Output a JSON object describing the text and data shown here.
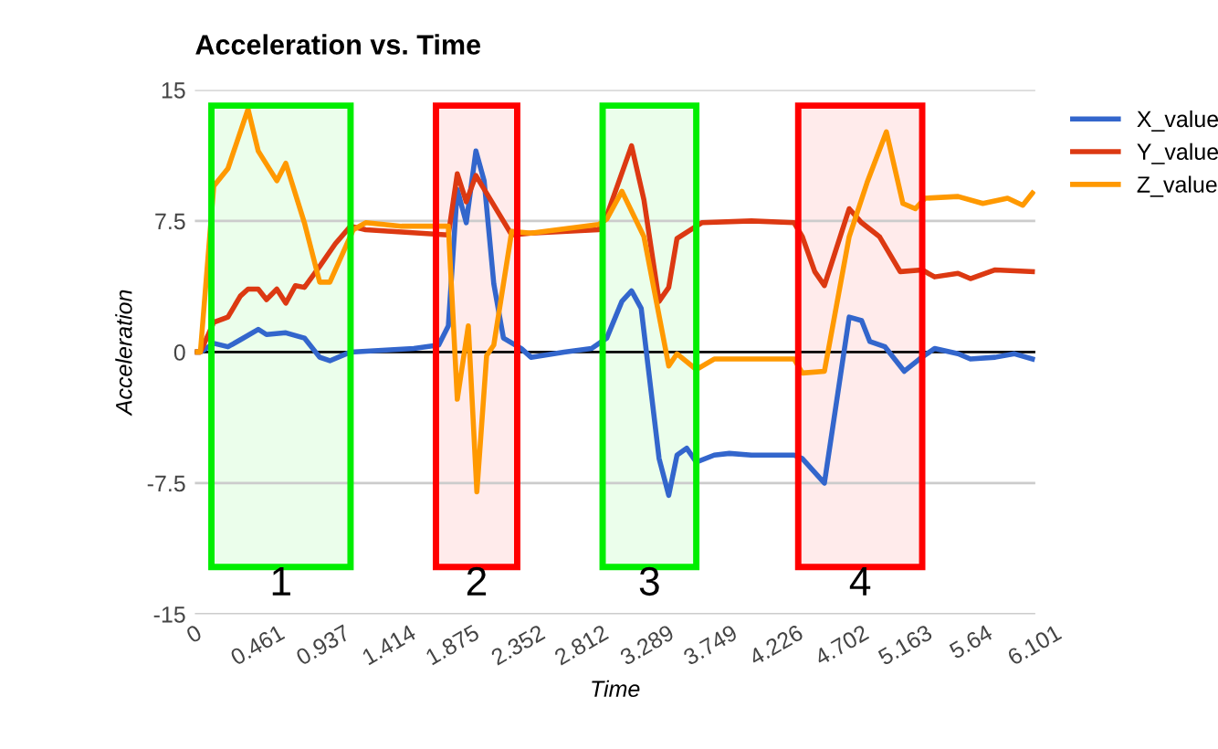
{
  "chart_data": {
    "type": "line",
    "title": "Acceleration vs. Time",
    "xlabel": "Time",
    "ylabel": "Acceleration",
    "xlim": [
      0,
      6.101
    ],
    "xticks": [
      0,
      0.461,
      0.937,
      1.414,
      1.875,
      2.352,
      2.812,
      3.289,
      3.749,
      4.226,
      4.702,
      5.163,
      5.64,
      6.101
    ],
    "ylim": [
      -15,
      15
    ],
    "yticks": [
      -15,
      -7.5,
      0,
      7.5,
      15
    ],
    "grid": "y",
    "legend": "right",
    "line_style": "solid",
    "series": [
      {
        "name": "X_value",
        "color": "#3366cc",
        "x": [
          0,
          0.04,
          0.137,
          0.24,
          0.33,
          0.46,
          0.52,
          0.66,
          0.795,
          0.906,
          0.98,
          1.13,
          1.59,
          1.77,
          1.84,
          1.905,
          1.97,
          2.04,
          2.1,
          2.17,
          2.24,
          2.37,
          2.44,
          2.68,
          2.88,
          2.99,
          3.1,
          3.17,
          3.24,
          3.37,
          3.44,
          3.5,
          3.57,
          3.64,
          3.77,
          3.88,
          4.04,
          4.35,
          4.41,
          4.57,
          4.75,
          4.84,
          4.9,
          5.01,
          5.15,
          5.26,
          5.37,
          5.54,
          5.63,
          5.81,
          5.95,
          6.08
        ],
        "values": [
          0,
          0,
          0.5,
          0.3,
          0.7,
          1.3,
          1.0,
          1.1,
          0.8,
          -0.3,
          -0.5,
          0,
          0.2,
          0.4,
          1.5,
          9.3,
          7.4,
          11.5,
          9.8,
          3.9,
          0.8,
          0.2,
          -0.3,
          0,
          0.2,
          0.8,
          2.9,
          3.5,
          2.5,
          -6.1,
          -8.2,
          -5.9,
          -5.5,
          -6.3,
          -5.9,
          -5.8,
          -5.9,
          -5.9,
          -6.1,
          -7.5,
          2.0,
          1.8,
          0.6,
          0.3,
          -1.1,
          -0.4,
          0.2,
          -0.1,
          -0.4,
          -0.3,
          -0.1,
          -0.4
        ]
      },
      {
        "name": "Y_value",
        "color": "#dc3912",
        "x": [
          0,
          0.04,
          0.137,
          0.24,
          0.33,
          0.386,
          0.46,
          0.52,
          0.595,
          0.66,
          0.73,
          0.795,
          0.906,
          1.02,
          1.13,
          1.24,
          1.84,
          1.905,
          1.97,
          2.04,
          2.17,
          2.3,
          2.44,
          2.93,
          2.99,
          3.17,
          3.26,
          3.37,
          3.44,
          3.5,
          3.68,
          4.04,
          4.35,
          4.41,
          4.5,
          4.57,
          4.75,
          4.84,
          4.97,
          5.12,
          5.28,
          5.37,
          5.54,
          5.63,
          5.81,
          6.08
        ],
        "values": [
          0,
          0,
          1.7,
          2.0,
          3.2,
          3.6,
          3.6,
          3.0,
          3.6,
          2.8,
          3.8,
          3.7,
          4.9,
          6.2,
          7.2,
          7.0,
          6.7,
          10.2,
          8.6,
          10.1,
          8.4,
          6.7,
          6.8,
          7.0,
          7.8,
          11.8,
          8.7,
          2.9,
          3.7,
          6.5,
          7.4,
          7.5,
          7.4,
          6.6,
          4.6,
          3.8,
          8.2,
          7.4,
          6.6,
          4.6,
          4.7,
          4.3,
          4.5,
          4.2,
          4.7,
          4.6
        ]
      },
      {
        "name": "Z_value",
        "color": "#ff9900",
        "x": [
          0,
          0.04,
          0.137,
          0.24,
          0.386,
          0.46,
          0.595,
          0.66,
          0.795,
          0.906,
          0.98,
          1.15,
          1.24,
          1.5,
          1.84,
          1.905,
          1.985,
          2.047,
          2.118,
          2.17,
          2.3,
          2.44,
          2.93,
          2.99,
          3.1,
          3.26,
          3.44,
          3.5,
          3.64,
          3.77,
          4.04,
          4.35,
          4.41,
          4.57,
          4.75,
          4.88,
          5.02,
          5.14,
          5.23,
          5.3,
          5.54,
          5.72,
          5.9,
          6.01,
          6.08
        ],
        "values": [
          0,
          0,
          9.5,
          10.5,
          13.9,
          11.5,
          9.8,
          10.8,
          7.4,
          4.0,
          4.0,
          7.0,
          7.4,
          7.2,
          7.2,
          -2.7,
          1.5,
          -8.0,
          -0.2,
          0.4,
          6.9,
          6.8,
          7.3,
          7.6,
          9.2,
          6.6,
          -0.8,
          -0.1,
          -1.0,
          -0.4,
          -0.4,
          -0.4,
          -1.2,
          -1.1,
          6.6,
          9.7,
          12.6,
          8.5,
          8.2,
          8.8,
          8.9,
          8.5,
          8.8,
          8.4,
          9.1
        ]
      }
    ],
    "bands": [
      {
        "axis": "x",
        "from": 0.12,
        "to": 1.13,
        "label": "1",
        "color": "#00ee00"
      },
      {
        "axis": "x",
        "from": 1.75,
        "to": 2.34,
        "label": "2",
        "color": "#ff0000"
      },
      {
        "axis": "x",
        "from": 2.96,
        "to": 3.64,
        "label": "3",
        "color": "#00ee00"
      },
      {
        "axis": "x",
        "from": 4.38,
        "to": 5.28,
        "label": "4",
        "color": "#ff0000"
      }
    ]
  }
}
